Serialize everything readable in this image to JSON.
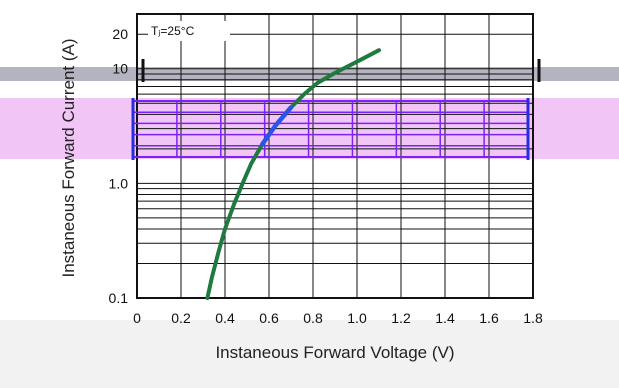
{
  "chart_data": {
    "type": "line",
    "title": "",
    "xlabel": "Instaneous Forward Voltage (V)",
    "ylabel": "Instaneous Forward Current (A)",
    "annotation": "Tⱼ=25°C",
    "xlim": [
      0,
      1.8
    ],
    "ylim": [
      0.1,
      30
    ],
    "yscale": "log",
    "grid": true,
    "x_ticks": [
      0,
      0.2,
      0.4,
      0.6,
      0.8,
      1.0,
      1.2,
      1.4,
      1.6,
      1.8
    ],
    "x_tick_labels": [
      "0",
      "0.2",
      "0.4",
      "0.6",
      "0.8",
      "1.0",
      "1.2",
      "1.4",
      "1.6",
      "1.8"
    ],
    "y_ticks": [
      0.1,
      1.0,
      10,
      20
    ],
    "y_tick_labels": [
      "0.1",
      "1.0",
      "10",
      "20"
    ],
    "series": [
      {
        "x": [
          0.32,
          0.34,
          0.37,
          0.4,
          0.44,
          0.48,
          0.52,
          0.57,
          0.63,
          0.7,
          0.76,
          0.82,
          0.9,
          1.0,
          1.1
        ],
        "y": [
          0.1,
          0.15,
          0.25,
          0.4,
          0.65,
          1.0,
          1.5,
          2.2,
          3.2,
          4.6,
          6.0,
          7.5,
          9.2,
          11.5,
          14.5
        ]
      }
    ],
    "colors": {
      "curve": "#1f7a3f",
      "curve_highlight": "#2b54e6",
      "band_purple": "#7b22f5",
      "band_fill": "#f1c6f7",
      "band_gray": "#b4b4c0",
      "grid": "#111111"
    }
  }
}
